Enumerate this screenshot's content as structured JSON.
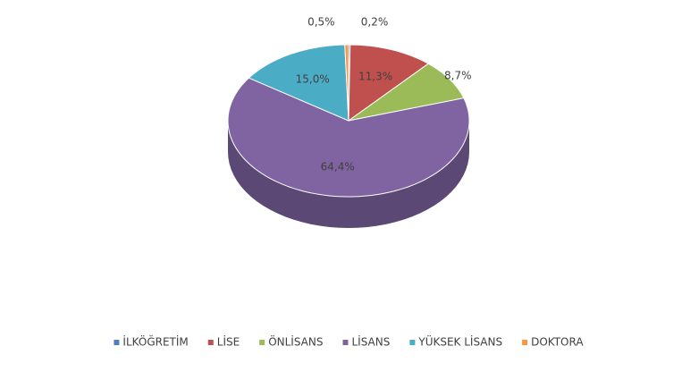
{
  "chart_data": {
    "type": "pie3d",
    "categories": [
      "İLKÖĞRETİM",
      "LİSE",
      "ÖNLİSANS",
      "LİSANS",
      "YÜKSEK LİSANS",
      "DOKTORA"
    ],
    "values": [
      0.2,
      11.3,
      8.7,
      64.4,
      15.0,
      0.5
    ],
    "value_labels": [
      "0,2%",
      "11,3%",
      "8,7%",
      "64,4%",
      "15,0%",
      "0,5%"
    ],
    "colors": [
      "#4f81bd",
      "#c0504d",
      "#9bbb59",
      "#8064a2",
      "#4bacc6",
      "#f79646"
    ],
    "legend": "bottom"
  }
}
